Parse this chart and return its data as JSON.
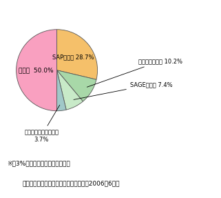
{
  "slices": [
    {
      "label": "SAP（独） 28.7%",
      "value": 28.7,
      "color": "#F5C06A",
      "inside": true
    },
    {
      "label": "オラクル（米） 10.2%",
      "value": 10.2,
      "color": "#A8D8A8",
      "inside": false
    },
    {
      "label": "SAGE（英） 7.4%",
      "value": 7.4,
      "color": "#C8EAC8",
      "inside": false
    },
    {
      "label": "マイクロソフト（米）\n3.7%",
      "value": 3.7,
      "color": "#A0C8C8",
      "inside": false
    },
    {
      "label": "その他  50.0%",
      "value": 50.0,
      "color": "#F9A0C0",
      "inside": true
    }
  ],
  "note1": "※　3%以上のシェアを有する企業",
  "note2": "（出典）ガートナー　データクエスト（2006年6月）",
  "background_color": "#FFFFFF",
  "edge_color": "#555555",
  "startangle": 90,
  "pie_xlim": [
    -1.4,
    2.3
  ],
  "pie_ylim": [
    -1.7,
    1.5
  ],
  "label_fontsize": 6.0,
  "note_fontsize": 6.5
}
